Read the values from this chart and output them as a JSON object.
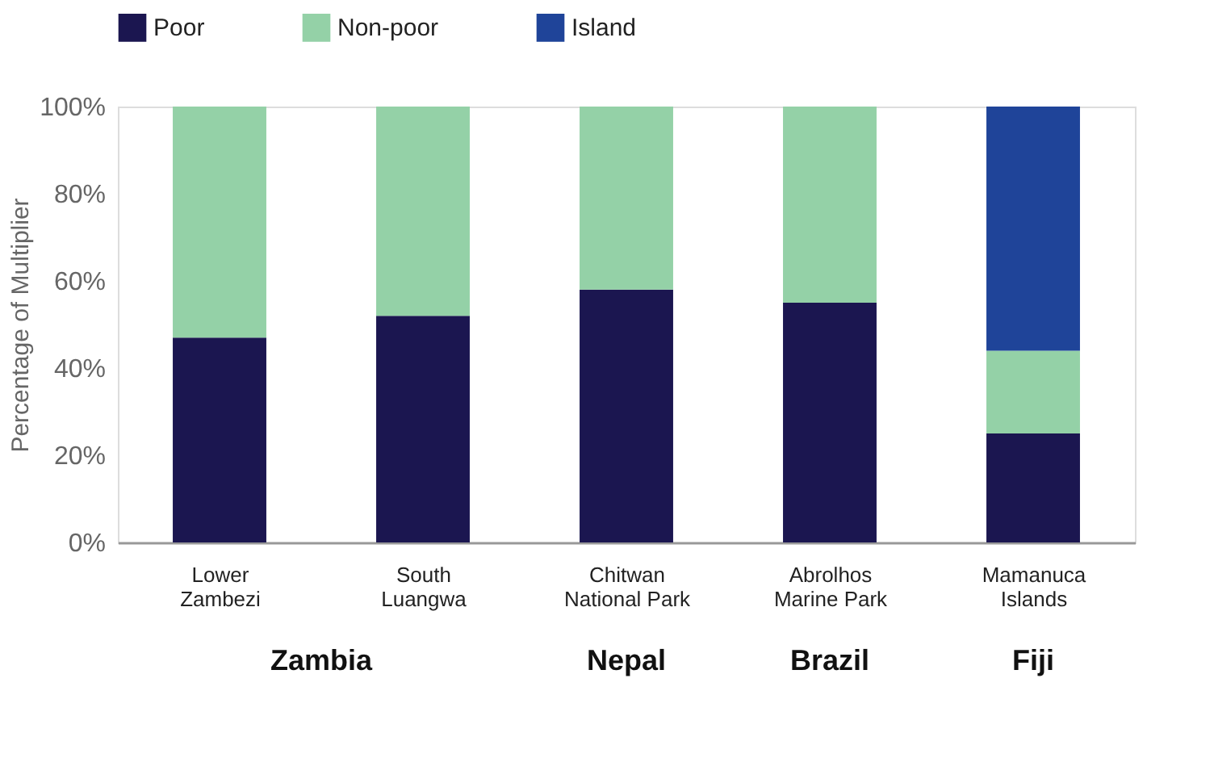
{
  "chart_data": {
    "type": "bar",
    "stacked": true,
    "ylabel": "Percentage of Multiplier",
    "categories": [
      "Lower\nZambezi",
      "South\nLuangwa",
      "Chitwan\nNational Park",
      "Abrolhos\nMarine Park",
      "Mamanuca\nIslands"
    ],
    "series": [
      {
        "name": "Poor",
        "color": "#1b1650",
        "values": [
          47,
          52,
          58,
          55,
          25
        ]
      },
      {
        "name": "Non-poor",
        "color": "#94d1a7",
        "values": [
          53,
          48,
          42,
          45,
          19
        ]
      },
      {
        "name": "Island",
        "color": "#1f4499",
        "values": [
          null,
          null,
          null,
          null,
          56
        ]
      }
    ],
    "ylim": [
      0,
      100
    ],
    "yticks": [
      {
        "value": 0,
        "label": "0%"
      },
      {
        "value": 20,
        "label": "20%"
      },
      {
        "value": 40,
        "label": "40%"
      },
      {
        "value": 60,
        "label": "60%"
      },
      {
        "value": 80,
        "label": "80%"
      },
      {
        "value": 100,
        "label": "100%"
      }
    ],
    "annotations": [
      "Zambia",
      "Nepal",
      "Brazil",
      "Fiji"
    ],
    "grid": false,
    "legend": "top"
  }
}
